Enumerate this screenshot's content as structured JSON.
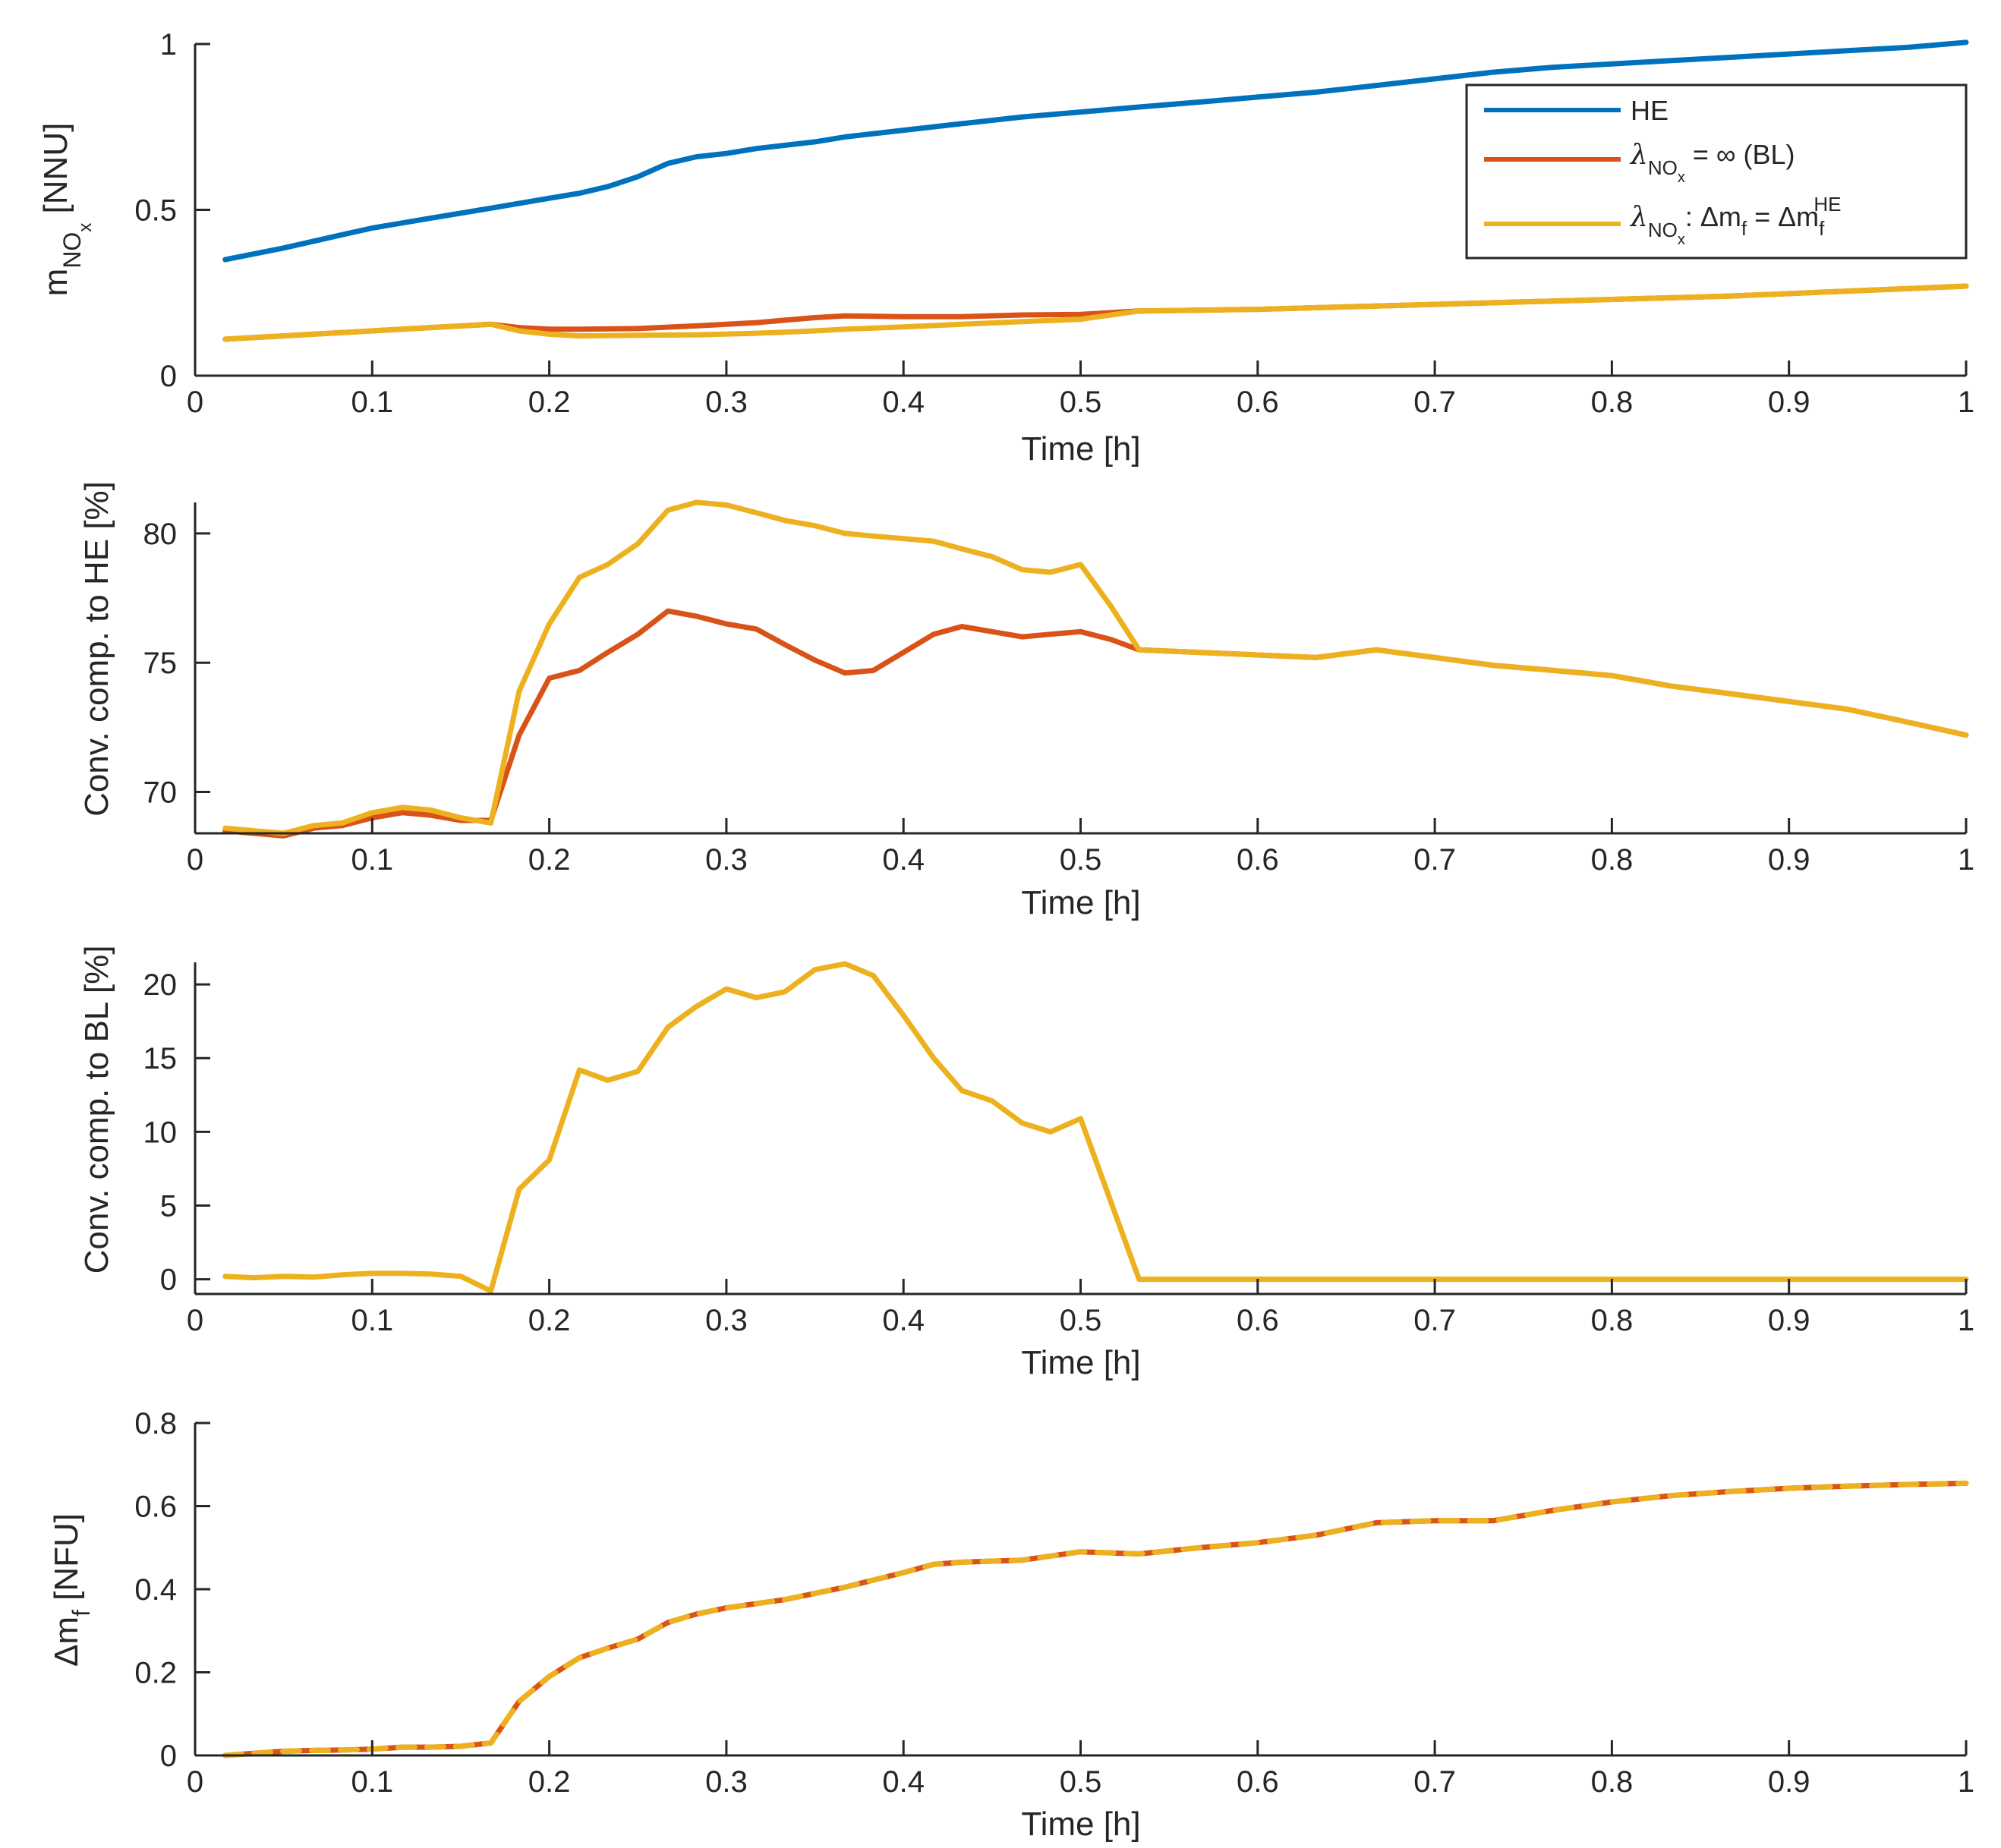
{
  "chart_data": [
    {
      "type": "line",
      "xlabel": "Time [h]",
      "ylabel": "m",
      "ylabel_subscript": "NO",
      "ylabel_subsub": "x",
      "ylabel_unit": " [NNU]",
      "xlim": [
        0,
        1
      ],
      "ylim": [
        0,
        1
      ],
      "xticks": [
        "0",
        "0.1",
        "0.2",
        "0.3",
        "0.4",
        "0.5",
        "0.6",
        "0.7",
        "0.8",
        "0.9",
        "1"
      ],
      "yticks": [
        "0",
        "0.5",
        "1"
      ],
      "legend_position": "top-right",
      "series": [
        {
          "id": "he",
          "color": "#0072BD",
          "x": [
            0.017,
            0.05,
            0.083,
            0.1,
            0.133,
            0.167,
            0.2,
            0.217,
            0.233,
            0.25,
            0.267,
            0.283,
            0.3,
            0.317,
            0.35,
            0.367,
            0.4,
            0.433,
            0.467,
            0.5,
            0.533,
            0.567,
            0.6,
            0.633,
            0.667,
            0.7,
            0.733,
            0.767,
            0.8,
            0.833,
            0.867,
            0.9,
            0.933,
            0.967,
            1.0
          ],
          "y": [
            0.35,
            0.385,
            0.425,
            0.445,
            0.475,
            0.505,
            0.535,
            0.55,
            0.57,
            0.6,
            0.64,
            0.66,
            0.67,
            0.685,
            0.705,
            0.72,
            0.74,
            0.76,
            0.78,
            0.795,
            0.81,
            0.825,
            0.84,
            0.855,
            0.875,
            0.895,
            0.915,
            0.93,
            0.94,
            0.95,
            0.96,
            0.97,
            0.98,
            0.99,
            1.005
          ]
        },
        {
          "id": "bl",
          "color": "#D95319",
          "x": [
            0.017,
            0.05,
            0.1,
            0.133,
            0.167,
            0.183,
            0.2,
            0.217,
            0.25,
            0.283,
            0.317,
            0.35,
            0.367,
            0.4,
            0.433,
            0.467,
            0.5,
            0.533,
            0.6,
            0.667,
            0.733,
            0.8,
            0.867,
            0.933,
            1.0
          ],
          "y": [
            0.11,
            0.12,
            0.135,
            0.145,
            0.155,
            0.145,
            0.14,
            0.14,
            0.142,
            0.15,
            0.16,
            0.175,
            0.18,
            0.178,
            0.178,
            0.183,
            0.185,
            0.195,
            0.2,
            0.21,
            0.22,
            0.23,
            0.24,
            0.255,
            0.27
          ]
        },
        {
          "id": "lam",
          "color": "#EDB120",
          "x": [
            0.017,
            0.05,
            0.1,
            0.133,
            0.167,
            0.183,
            0.2,
            0.217,
            0.25,
            0.283,
            0.317,
            0.35,
            0.367,
            0.4,
            0.433,
            0.467,
            0.5,
            0.533,
            0.6,
            0.667,
            0.733,
            0.8,
            0.867,
            0.933,
            1.0
          ],
          "y": [
            0.11,
            0.12,
            0.135,
            0.145,
            0.155,
            0.135,
            0.125,
            0.12,
            0.122,
            0.123,
            0.128,
            0.135,
            0.14,
            0.147,
            0.155,
            0.163,
            0.17,
            0.195,
            0.2,
            0.21,
            0.22,
            0.23,
            0.24,
            0.255,
            0.27
          ]
        }
      ],
      "legend": [
        {
          "series": "he",
          "label": "HE"
        },
        {
          "series": "bl",
          "label": "λ NOx = ∞ (BL)"
        },
        {
          "series": "lam",
          "label": "λ NOx : Δm f = Δm f HE"
        }
      ]
    },
    {
      "type": "line",
      "xlabel": "Time [h]",
      "ylabel": "Conv. comp. to HE [%]",
      "xlim": [
        0,
        1
      ],
      "ylim": [
        68.4,
        81.2
      ],
      "xticks": [
        "0",
        "0.1",
        "0.2",
        "0.3",
        "0.4",
        "0.5",
        "0.6",
        "0.7",
        "0.8",
        "0.9",
        "1"
      ],
      "yticks": [
        "70",
        "75",
        "80"
      ],
      "series": [
        {
          "id": "bl",
          "color": "#D95319",
          "x": [
            0.017,
            0.033,
            0.05,
            0.067,
            0.083,
            0.1,
            0.117,
            0.133,
            0.15,
            0.167,
            0.183,
            0.2,
            0.217,
            0.233,
            0.25,
            0.267,
            0.283,
            0.3,
            0.317,
            0.333,
            0.35,
            0.367,
            0.383,
            0.4,
            0.417,
            0.433,
            0.45,
            0.467,
            0.483,
            0.5,
            0.517,
            0.533,
            0.567,
            0.6,
            0.633,
            0.667,
            0.7,
            0.733,
            0.767,
            0.8,
            0.833,
            0.867,
            0.9,
            0.933,
            0.967,
            1.0
          ],
          "y": [
            68.5,
            68.4,
            68.3,
            68.6,
            68.7,
            69.0,
            69.2,
            69.1,
            68.9,
            68.9,
            72.2,
            74.4,
            74.7,
            75.4,
            76.1,
            77.0,
            76.8,
            76.5,
            76.3,
            75.7,
            75.1,
            74.6,
            74.7,
            75.4,
            76.1,
            76.4,
            76.2,
            76.0,
            76.1,
            76.2,
            75.9,
            75.5,
            75.4,
            75.3,
            75.2,
            75.5,
            75.2,
            74.9,
            74.7,
            74.5,
            74.1,
            73.8,
            73.5,
            73.2,
            72.7,
            72.2
          ]
        },
        {
          "id": "lam",
          "color": "#EDB120",
          "x": [
            0.017,
            0.033,
            0.05,
            0.067,
            0.083,
            0.1,
            0.117,
            0.133,
            0.15,
            0.167,
            0.183,
            0.2,
            0.217,
            0.233,
            0.25,
            0.267,
            0.283,
            0.3,
            0.317,
            0.333,
            0.35,
            0.367,
            0.383,
            0.4,
            0.417,
            0.433,
            0.45,
            0.467,
            0.483,
            0.5,
            0.517,
            0.533,
            0.567,
            0.6,
            0.633,
            0.667,
            0.7,
            0.733,
            0.767,
            0.8,
            0.833,
            0.867,
            0.9,
            0.933,
            0.967,
            1.0
          ],
          "y": [
            68.6,
            68.5,
            68.4,
            68.7,
            68.8,
            69.2,
            69.4,
            69.3,
            69.0,
            68.8,
            73.9,
            76.5,
            78.3,
            78.8,
            79.6,
            80.9,
            81.2,
            81.1,
            80.8,
            80.5,
            80.3,
            80.0,
            79.9,
            79.8,
            79.7,
            79.4,
            79.1,
            78.6,
            78.5,
            78.8,
            77.2,
            75.5,
            75.4,
            75.3,
            75.2,
            75.5,
            75.2,
            74.9,
            74.7,
            74.5,
            74.1,
            73.8,
            73.5,
            73.2,
            72.7,
            72.2
          ]
        }
      ]
    },
    {
      "type": "line",
      "xlabel": "Time [h]",
      "ylabel": "Conv. comp. to BL [%]",
      "xlim": [
        0,
        1
      ],
      "ylim": [
        -1,
        21.5
      ],
      "xticks": [
        "0",
        "0.1",
        "0.2",
        "0.3",
        "0.4",
        "0.5",
        "0.6",
        "0.7",
        "0.8",
        "0.9",
        "1"
      ],
      "yticks": [
        "0",
        "5",
        "10",
        "15",
        "20"
      ],
      "series": [
        {
          "id": "lam",
          "color": "#EDB120",
          "x": [
            0.017,
            0.033,
            0.05,
            0.067,
            0.083,
            0.1,
            0.117,
            0.133,
            0.15,
            0.167,
            0.183,
            0.2,
            0.217,
            0.233,
            0.25,
            0.267,
            0.283,
            0.3,
            0.317,
            0.333,
            0.35,
            0.367,
            0.383,
            0.4,
            0.417,
            0.433,
            0.45,
            0.467,
            0.483,
            0.5,
            0.533,
            0.6,
            0.7,
            0.8,
            0.9,
            1.0
          ],
          "y": [
            0.2,
            0.1,
            0.2,
            0.15,
            0.3,
            0.4,
            0.4,
            0.35,
            0.2,
            -0.8,
            6.1,
            8.1,
            14.2,
            13.5,
            14.1,
            17.1,
            18.5,
            19.7,
            19.1,
            19.5,
            21.0,
            21.4,
            20.6,
            17.9,
            15.0,
            12.8,
            12.1,
            10.6,
            10.0,
            10.9,
            0.0,
            0.0,
            0.0,
            0.0,
            0.0,
            0.0
          ]
        }
      ]
    },
    {
      "type": "line",
      "xlabel": "Time [h]",
      "ylabel": "Δm",
      "ylabel_subscript": "f",
      "ylabel_unit": " [NFU]",
      "xlim": [
        0,
        1
      ],
      "ylim": [
        0,
        0.8
      ],
      "xticks": [
        "0",
        "0.1",
        "0.2",
        "0.3",
        "0.4",
        "0.5",
        "0.6",
        "0.7",
        "0.8",
        "0.9",
        "1"
      ],
      "yticks": [
        "0",
        "0.2",
        "0.4",
        "0.6",
        "0.8"
      ],
      "series": [
        {
          "id": "bl",
          "color": "#D95319",
          "x": [
            0.017,
            0.033,
            0.05,
            0.067,
            0.083,
            0.1,
            0.117,
            0.133,
            0.15,
            0.167,
            0.183,
            0.2,
            0.217,
            0.233,
            0.25,
            0.267,
            0.283,
            0.3,
            0.333,
            0.367,
            0.4,
            0.417,
            0.433,
            0.467,
            0.5,
            0.533,
            0.567,
            0.6,
            0.633,
            0.667,
            0.7,
            0.733,
            0.767,
            0.8,
            0.833,
            0.867,
            0.9,
            0.933,
            0.967,
            1.0
          ],
          "y": [
            0.0,
            0.005,
            0.01,
            0.012,
            0.013,
            0.015,
            0.02,
            0.02,
            0.022,
            0.03,
            0.13,
            0.19,
            0.235,
            0.258,
            0.28,
            0.32,
            0.34,
            0.355,
            0.375,
            0.405,
            0.44,
            0.46,
            0.465,
            0.47,
            0.49,
            0.485,
            0.5,
            0.512,
            0.53,
            0.56,
            0.565,
            0.565,
            0.59,
            0.61,
            0.625,
            0.635,
            0.643,
            0.648,
            0.652,
            0.655
          ]
        },
        {
          "id": "lam",
          "color": "#EDB120",
          "dashed": true,
          "x": [
            0.017,
            0.033,
            0.05,
            0.067,
            0.083,
            0.1,
            0.117,
            0.133,
            0.15,
            0.167,
            0.183,
            0.2,
            0.217,
            0.233,
            0.25,
            0.267,
            0.283,
            0.3,
            0.333,
            0.367,
            0.4,
            0.417,
            0.433,
            0.467,
            0.5,
            0.533,
            0.567,
            0.6,
            0.633,
            0.667,
            0.7,
            0.733,
            0.767,
            0.8,
            0.833,
            0.867,
            0.9,
            0.933,
            0.967,
            1.0
          ],
          "y": [
            0.0,
            0.005,
            0.01,
            0.012,
            0.013,
            0.015,
            0.02,
            0.02,
            0.022,
            0.03,
            0.13,
            0.19,
            0.235,
            0.258,
            0.28,
            0.32,
            0.34,
            0.355,
            0.375,
            0.405,
            0.44,
            0.46,
            0.465,
            0.47,
            0.49,
            0.485,
            0.5,
            0.512,
            0.53,
            0.56,
            0.565,
            0.565,
            0.59,
            0.61,
            0.625,
            0.635,
            0.643,
            0.648,
            0.652,
            0.655
          ]
        }
      ]
    }
  ]
}
